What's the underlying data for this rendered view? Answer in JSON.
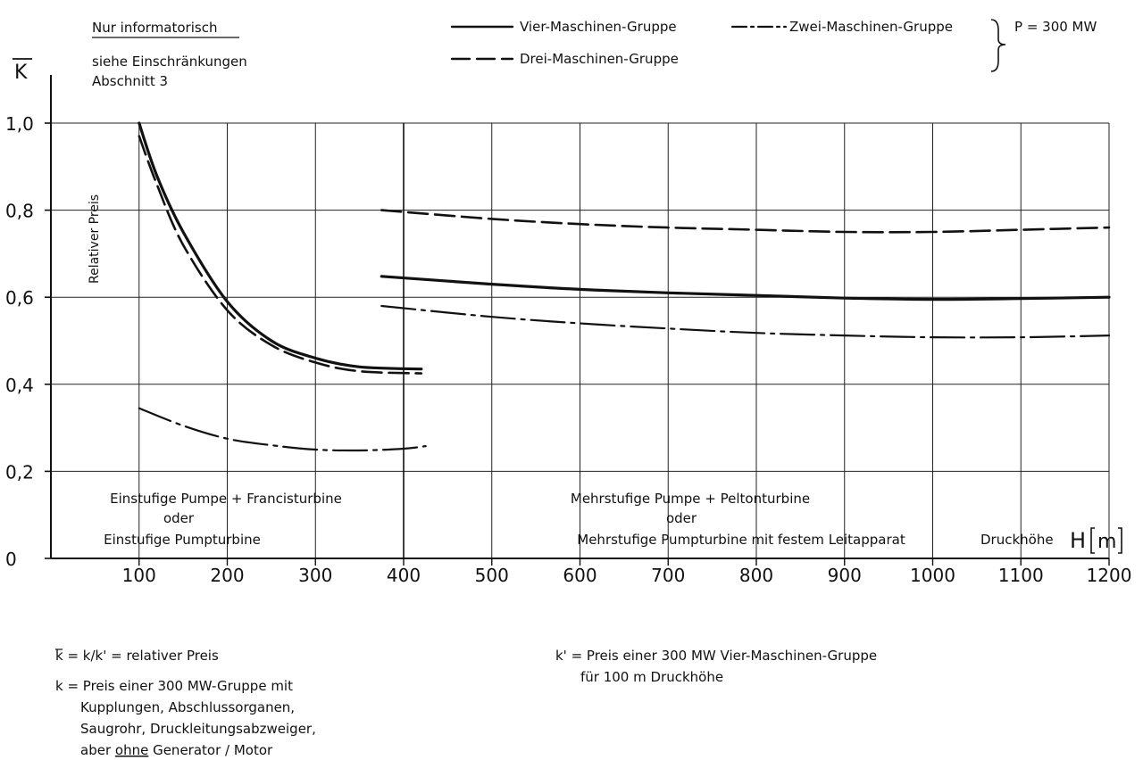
{
  "header": {
    "note_title": "Nur informatorisch",
    "note_line1": "siehe Einschränkungen",
    "note_line2": "Abschnitt 3",
    "y_symbol": "K",
    "legend_vier": "Vier-Maschinen-Gruppe",
    "legend_zwei": "Zwei-Maschinen-Gruppe",
    "legend_drei": "Drei-Maschinen-Gruppe",
    "power": "P = 300 MW"
  },
  "regions": {
    "left_line1": "Einstufige Pumpe + Francisturbine",
    "left_line2": "oder",
    "left_line3": "Einstufige Pumpturbine",
    "right_line1": "Mehrstufige Pumpe + Peltonturbine",
    "right_line2": "oder",
    "right_line3": "Mehrstufige Pumpturbine mit festem Leitapparat"
  },
  "footnotes": {
    "kbar_def": "k = k/k' = relativer Preis",
    "k_line1": "k = Preis einer 300 MW-Gruppe mit",
    "k_line2": "Kupplungen, Abschlussorganen,",
    "k_line3": "Saugrohr, Druckleitungsabzweiger,",
    "k_line4_pre": "aber ",
    "k_line4_u": "ohne",
    "k_line4_post": " Generator / Motor",
    "kp_line1": "k' = Preis einer 300 MW Vier-Maschinen-Gruppe",
    "kp_line2": "für 100 m Druckhöhe"
  },
  "chart_data": {
    "type": "line",
    "xlabel": "Druckhöhe",
    "xlabel_symbol": "H",
    "xlabel_unit": "m",
    "ylabel": "Relativer Preis",
    "xlim": [
      0,
      1200
    ],
    "ylim": [
      0,
      1.0
    ],
    "x_ticks": [
      "100",
      "200",
      "300",
      "400",
      "500",
      "600",
      "700",
      "800",
      "900",
      "1000",
      "1100",
      "1200"
    ],
    "y_ticks": [
      "0",
      "0,2",
      "0,4",
      "0,6",
      "0,8",
      "1,0"
    ],
    "grid": true,
    "region_boundary_x": 400,
    "series": [
      {
        "name": "Vier-Maschinen-Gruppe",
        "style": "solid",
        "x": [
          100,
          120,
          150,
          200,
          250,
          300,
          350,
          420
        ],
        "y": [
          1.0,
          0.88,
          0.75,
          0.59,
          0.5,
          0.46,
          0.44,
          0.435
        ]
      },
      {
        "name": "Drei-Maschinen-Gruppe",
        "style": "dashed",
        "x": [
          100,
          120,
          150,
          200,
          250,
          300,
          350,
          420
        ],
        "y": [
          0.97,
          0.86,
          0.72,
          0.57,
          0.49,
          0.45,
          0.43,
          0.425
        ]
      },
      {
        "name": "Zwei-Maschinen-Gruppe",
        "style": "dashdot",
        "x": [
          100,
          150,
          200,
          250,
          300,
          350,
          400,
          425
        ],
        "y": [
          0.345,
          0.305,
          0.275,
          0.26,
          0.25,
          0.248,
          0.252,
          0.258
        ]
      },
      {
        "name": "Vier-Maschinen-Gruppe",
        "style": "solid",
        "x": [
          375,
          500,
          600,
          700,
          800,
          900,
          1000,
          1100,
          1200
        ],
        "y": [
          0.648,
          0.63,
          0.618,
          0.61,
          0.604,
          0.598,
          0.595,
          0.597,
          0.6
        ]
      },
      {
        "name": "Drei-Maschinen-Gruppe",
        "style": "dashed",
        "x": [
          375,
          500,
          600,
          700,
          800,
          900,
          1000,
          1100,
          1200
        ],
        "y": [
          0.8,
          0.78,
          0.768,
          0.76,
          0.755,
          0.75,
          0.75,
          0.755,
          0.76
        ]
      },
      {
        "name": "Zwei-Maschinen-Gruppe",
        "style": "dashdot",
        "x": [
          375,
          500,
          600,
          700,
          800,
          900,
          1000,
          1100,
          1200
        ],
        "y": [
          0.58,
          0.555,
          0.54,
          0.528,
          0.518,
          0.512,
          0.508,
          0.508,
          0.512
        ]
      }
    ]
  }
}
